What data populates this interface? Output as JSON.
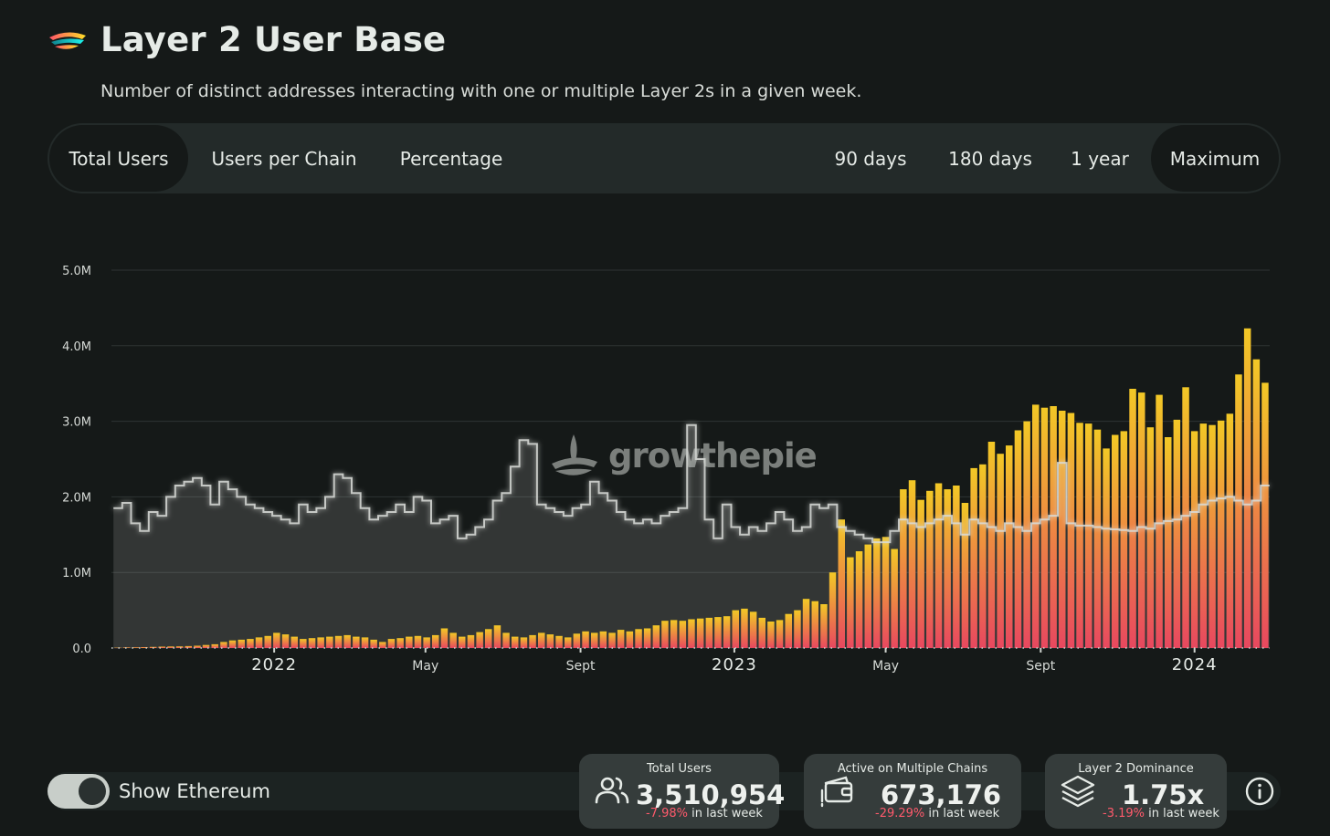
{
  "header": {
    "title": "Layer 2 User Base",
    "subtitle": "Number of distinct addresses interacting with one or multiple Layer 2s in a given week."
  },
  "tabs": [
    {
      "label": "Total Users",
      "active": true
    },
    {
      "label": "Users per Chain",
      "active": false
    },
    {
      "label": "Percentage",
      "active": false
    }
  ],
  "ranges": [
    {
      "label": "90 days",
      "active": false
    },
    {
      "label": "180 days",
      "active": false
    },
    {
      "label": "1 year",
      "active": false
    },
    {
      "label": "Maximum",
      "active": true
    }
  ],
  "watermark": "growthepie",
  "toggle": {
    "label": "Show Ethereum",
    "on": true
  },
  "cards": [
    {
      "title": "Total Users",
      "value": "3,510,954",
      "delta": "-7.98%",
      "delta_suffix": " in last week",
      "icon": "users-icon"
    },
    {
      "title": "Active on Multiple Chains",
      "value": "673,176",
      "delta": "-29.29%",
      "delta_suffix": " in last week",
      "icon": "wallet-icon"
    },
    {
      "title": "Layer 2 Dominance",
      "value": "1.75x",
      "delta": "-3.19%",
      "delta_suffix": " in last week",
      "icon": "layers-icon"
    }
  ],
  "colors": {
    "background": "#151918",
    "bar_top": "#f2c826",
    "bar_bottom": "#e8485f",
    "ethereum_line": "#d9dcd8",
    "negative": "#ff5a6c"
  },
  "chart_data": {
    "type": "bar",
    "ylim": [
      0,
      5000000
    ],
    "yticks": [
      "0.0",
      "1.0M",
      "2.0M",
      "3.0M",
      "4.0M",
      "5.0M"
    ],
    "xticks": [
      {
        "label": "2022",
        "date": "2022-01-01",
        "kind": "year"
      },
      {
        "label": "May",
        "date": "2022-05-01",
        "kind": "month"
      },
      {
        "label": "Sept",
        "date": "2022-09-01",
        "kind": "month"
      },
      {
        "label": "2023",
        "date": "2023-01-01",
        "kind": "year"
      },
      {
        "label": "May",
        "date": "2023-05-01",
        "kind": "month"
      },
      {
        "label": "Sept",
        "date": "2023-09-01",
        "kind": "month"
      },
      {
        "label": "2024",
        "date": "2024-01-01",
        "kind": "year"
      }
    ],
    "x_start": "2021-08-30",
    "x_step": "1 week",
    "series": [
      {
        "name": "Layer 2s",
        "type": "bar",
        "values": [
          5000,
          8000,
          10000,
          12000,
          15000,
          18000,
          20000,
          22000,
          25000,
          30000,
          40000,
          50000,
          80000,
          100000,
          110000,
          120000,
          140000,
          160000,
          200000,
          180000,
          150000,
          120000,
          130000,
          140000,
          150000,
          160000,
          170000,
          150000,
          140000,
          110000,
          80000,
          120000,
          130000,
          150000,
          160000,
          140000,
          170000,
          260000,
          200000,
          150000,
          170000,
          210000,
          250000,
          300000,
          200000,
          150000,
          140000,
          170000,
          200000,
          180000,
          160000,
          140000,
          190000,
          220000,
          200000,
          220000,
          200000,
          240000,
          220000,
          250000,
          260000,
          300000,
          360000,
          370000,
          360000,
          380000,
          390000,
          400000,
          410000,
          420000,
          500000,
          520000,
          480000,
          400000,
          350000,
          370000,
          450000,
          500000,
          650000,
          620000,
          580000,
          1000000,
          1700000,
          1200000,
          1280000,
          1370000,
          1450000,
          1470000,
          1310000,
          2100000,
          2220000,
          1960000,
          2080000,
          2180000,
          2100000,
          2150000,
          1920000,
          2380000,
          2430000,
          2730000,
          2570000,
          2680000,
          2880000,
          3000000,
          3220000,
          3180000,
          3200000,
          3140000,
          3110000,
          2980000,
          2970000,
          2890000,
          2640000,
          2820000,
          2870000,
          3430000,
          3380000,
          2920000,
          3350000,
          2790000,
          3020000,
          3450000,
          2870000,
          2970000,
          2950000,
          3010000,
          3100000,
          3620000,
          4230000,
          3820000,
          3510000
        ]
      },
      {
        "name": "Ethereum",
        "type": "step-area",
        "values": [
          1850000,
          1920000,
          1650000,
          1550000,
          1800000,
          1750000,
          2000000,
          2150000,
          2200000,
          2250000,
          2150000,
          1900000,
          2200000,
          2100000,
          2000000,
          1900000,
          1850000,
          1800000,
          1750000,
          1700000,
          1650000,
          1900000,
          1800000,
          1850000,
          2000000,
          2300000,
          2250000,
          2050000,
          1850000,
          1700000,
          1750000,
          1800000,
          1900000,
          1800000,
          2000000,
          1950000,
          1650000,
          1700000,
          1750000,
          1450000,
          1500000,
          1600000,
          1700000,
          1950000,
          2050000,
          2400000,
          2750000,
          2700000,
          1900000,
          1850000,
          1800000,
          1750000,
          1850000,
          1900000,
          2200000,
          2050000,
          1950000,
          1800000,
          1700000,
          1650000,
          1700000,
          1650000,
          1750000,
          1800000,
          1850000,
          2950000,
          2500000,
          1700000,
          1450000,
          1900000,
          1600000,
          1500000,
          1600000,
          1550000,
          1650000,
          1800000,
          1700000,
          1550000,
          1600000,
          1900000,
          1850000,
          1900000,
          1600000,
          1550000,
          1500000,
          1450000,
          1400000,
          1400000,
          1550000,
          1700000,
          1650000,
          1600000,
          1650000,
          1700000,
          1750000,
          1650000,
          1500000,
          1700000,
          1650000,
          1600000,
          1550000,
          1650000,
          1600000,
          1550000,
          1650000,
          1700000,
          1750000,
          2450000,
          1650000,
          1620000,
          1620000,
          1600000,
          1580000,
          1570000,
          1560000,
          1550000,
          1600000,
          1580000,
          1650000,
          1680000,
          1700000,
          1750000,
          1800000,
          1900000,
          1950000,
          1980000,
          2000000,
          1950000,
          1900000,
          1950000,
          2150000
        ]
      }
    ]
  }
}
